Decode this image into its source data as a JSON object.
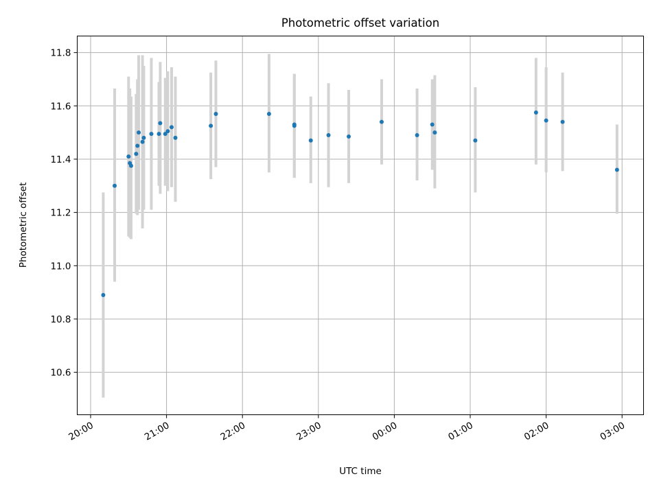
{
  "chart_data": {
    "type": "scatter",
    "title": "Photometric offset variation",
    "xlabel": "UTC time",
    "ylabel": "Photometric offset",
    "grid": true,
    "x_ticks": [
      "20:00",
      "21:00",
      "22:00",
      "23:00",
      "00:00",
      "01:00",
      "02:00",
      "03:00"
    ],
    "y_ticks": [
      "10.6",
      "10.8",
      "11.0",
      "11.2",
      "11.4",
      "11.6",
      "11.8"
    ],
    "xlim_hours": [
      19.9,
      27.3
    ],
    "ylim": [
      10.44,
      11.86
    ],
    "colors": {
      "marker": "#1f77b4",
      "errorbar": "#d3d3d3",
      "grid": "#b0b0b0"
    },
    "series": [
      {
        "error_color": "#d3d3d3",
        "points": [
          {
            "t": "20:10",
            "y": 10.89,
            "lo": 10.505,
            "hi": 11.275
          },
          {
            "t": "20:19",
            "y": 11.3,
            "lo": 10.94,
            "hi": 11.665
          },
          {
            "t": "20:30",
            "y": 11.41,
            "lo": 11.11,
            "hi": 11.71
          },
          {
            "t": "20:31",
            "y": 11.385,
            "lo": 11.105,
            "hi": 11.665
          },
          {
            "t": "20:32",
            "y": 11.375,
            "lo": 11.1,
            "hi": 11.635
          },
          {
            "t": "20:36",
            "y": 11.42,
            "lo": 11.195,
            "hi": 11.645
          },
          {
            "t": "20:37",
            "y": 11.45,
            "lo": 11.19,
            "hi": 11.7
          },
          {
            "t": "20:38",
            "y": 11.5,
            "lo": 11.21,
            "hi": 11.79
          },
          {
            "t": "20:41",
            "y": 11.465,
            "lo": 11.14,
            "hi": 11.79
          },
          {
            "t": "20:42",
            "y": 11.48,
            "lo": 11.21,
            "hi": 11.75
          },
          {
            "t": "20:48",
            "y": 11.495,
            "lo": 11.21,
            "hi": 11.78
          },
          {
            "t": "20:54",
            "y": 11.495,
            "lo": 11.3,
            "hi": 11.69
          },
          {
            "t": "20:55",
            "y": 11.535,
            "lo": 11.27,
            "hi": 11.765
          },
          {
            "t": "20:59",
            "y": 11.495,
            "lo": 11.3,
            "hi": 11.705
          },
          {
            "t": "21:01",
            "y": 11.505,
            "lo": 11.28,
            "hi": 11.73
          },
          {
            "t": "21:04",
            "y": 11.52,
            "lo": 11.295,
            "hi": 11.745
          },
          {
            "t": "21:07",
            "y": 11.48,
            "lo": 11.24,
            "hi": 11.71
          },
          {
            "t": "21:35",
            "y": 11.525,
            "lo": 11.325,
            "hi": 11.725
          },
          {
            "t": "21:39",
            "y": 11.57,
            "lo": 11.37,
            "hi": 11.77
          },
          {
            "t": "22:21",
            "y": 11.57,
            "lo": 11.35,
            "hi": 11.795
          },
          {
            "t": "22:41",
            "y": 11.53,
            "lo": 11.33,
            "hi": 11.72
          },
          {
            "t": "22:41",
            "y": 11.525,
            "lo": 11.33,
            "hi": 11.72
          },
          {
            "t": "22:54",
            "y": 11.47,
            "lo": 11.31,
            "hi": 11.635
          },
          {
            "t": "23:08",
            "y": 11.49,
            "lo": 11.295,
            "hi": 11.685
          },
          {
            "t": "23:24",
            "y": 11.485,
            "lo": 11.31,
            "hi": 11.66
          },
          {
            "t": "23:50",
            "y": 11.54,
            "lo": 11.38,
            "hi": 11.7
          },
          {
            "t": "00:18",
            "y": 11.49,
            "lo": 11.32,
            "hi": 11.665
          },
          {
            "t": "00:30",
            "y": 11.53,
            "lo": 11.36,
            "hi": 11.7
          },
          {
            "t": "00:32",
            "y": 11.5,
            "lo": 11.29,
            "hi": 11.715
          },
          {
            "t": "01:04",
            "y": 11.47,
            "lo": 11.275,
            "hi": 11.67
          },
          {
            "t": "01:52",
            "y": 11.575,
            "lo": 11.38,
            "hi": 11.78
          },
          {
            "t": "02:00",
            "y": 11.545,
            "lo": 11.35,
            "hi": 11.745
          },
          {
            "t": "02:13",
            "y": 11.54,
            "lo": 11.355,
            "hi": 11.725
          },
          {
            "t": "02:56",
            "y": 11.36,
            "lo": 11.195,
            "hi": 11.53
          }
        ]
      }
    ]
  }
}
